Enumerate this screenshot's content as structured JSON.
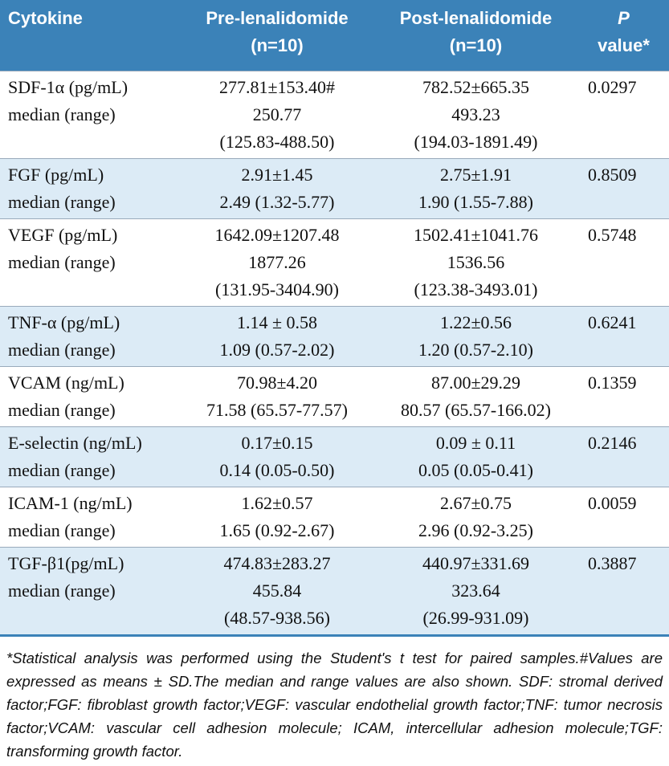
{
  "table": {
    "header": [
      [
        "Cytokine"
      ],
      [
        "Pre-lenalidomide",
        "(n=10)"
      ],
      [
        "Post-lenalidomide",
        "(n=10)"
      ],
      [
        "P",
        "value*"
      ]
    ],
    "rows": [
      [
        [
          "SDF-1α (pg/mL)",
          "median (range)"
        ],
        [
          "277.81±153.40#",
          "250.77",
          "(125.83-488.50)"
        ],
        [
          "782.52±665.35",
          "493.23",
          "(194.03-1891.49)"
        ],
        [
          "0.0297"
        ]
      ],
      [
        [
          "FGF (pg/mL)",
          "median (range)"
        ],
        [
          "2.91±1.45",
          "2.49 (1.32-5.77)"
        ],
        [
          "2.75±1.91",
          "1.90 (1.55-7.88)"
        ],
        [
          "0.8509"
        ]
      ],
      [
        [
          "VEGF (pg/mL)",
          "median (range)"
        ],
        [
          "1642.09±1207.48",
          "1877.26",
          "(131.95-3404.90)"
        ],
        [
          "1502.41±1041.76",
          "1536.56",
          "(123.38-3493.01)"
        ],
        [
          "0.5748"
        ]
      ],
      [
        [
          "TNF-α (pg/mL)",
          "median (range)"
        ],
        [
          "1.14 ± 0.58",
          "1.09 (0.57-2.02)"
        ],
        [
          "1.22±0.56",
          "1.20 (0.57-2.10)"
        ],
        [
          "0.6241"
        ]
      ],
      [
        [
          "VCAM (ng/mL)",
          "median (range)"
        ],
        [
          "70.98±4.20",
          "71.58 (65.57-77.57)"
        ],
        [
          "87.00±29.29",
          "80.57 (65.57-166.02)"
        ],
        [
          "0.1359"
        ]
      ],
      [
        [
          "E-selectin (ng/mL)",
          "median (range)"
        ],
        [
          "0.17±0.15",
          "0.14 (0.05-0.50)"
        ],
        [
          "0.09 ± 0.11",
          "0.05 (0.05-0.41)"
        ],
        [
          "0.2146"
        ]
      ],
      [
        [
          "ICAM-1 (ng/mL)",
          "median (range)"
        ],
        [
          "1.62±0.57",
          "1.65 (0.92-2.67)"
        ],
        [
          "2.67±0.75",
          "2.96 (0.92-3.25)"
        ],
        [
          "0.0059"
        ]
      ],
      [
        [
          "TGF-β1(pg/mL)",
          "median (range)"
        ],
        [
          "474.83±283.27",
          "455.84",
          "(48.57-938.56)"
        ],
        [
          "440.97±331.69",
          "323.64",
          "(26.99-931.09)"
        ],
        [
          "0.3887"
        ]
      ]
    ],
    "footnote": "*Statistical analysis was performed using the Student's t test for paired samples.#Values are expressed as means ± SD.The median and range values are also shown. SDF: stromal derived factor;FGF: fibroblast growth factor;VEGF: vascular endothelial growth factor;TNF: tumor necrosis factor;VCAM: vascular cell adhesion molecule; ICAM, intercellular adhesion molecule;TGF: transforming growth factor."
  }
}
